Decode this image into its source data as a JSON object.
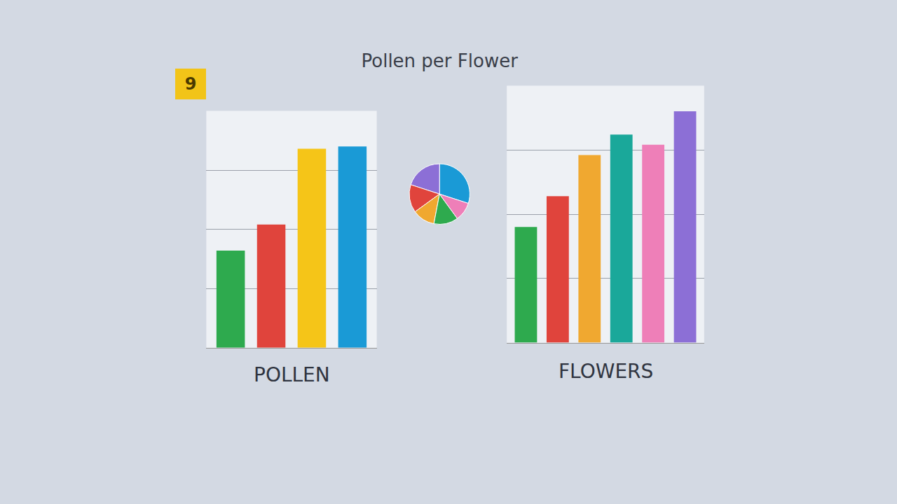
{
  "title": "Pollen per Flower",
  "badge": "9",
  "chart_data": [
    {
      "type": "bar",
      "xlabel": "POLLEN",
      "categories": [
        null,
        null,
        null,
        null
      ],
      "values": [
        41,
        52,
        84,
        85
      ],
      "colors": [
        "#2eaa4e",
        "#e0443c",
        "#f5c518",
        "#1a9ad6"
      ],
      "ylim": [
        0,
        100
      ],
      "yticks": [
        0,
        25,
        50,
        75,
        100
      ],
      "grid": true,
      "tick_labels": false
    },
    {
      "type": "pie",
      "values": [
        30,
        20,
        15,
        12,
        13,
        10
      ],
      "colors": [
        "#1a9ad6",
        "#8c6fd6",
        "#e0443c",
        "#f0a830",
        "#2eaa4e",
        "#ee7fb8"
      ]
    },
    {
      "type": "bar",
      "xlabel": "FLOWERS",
      "categories": [
        null,
        null,
        null,
        null,
        null,
        null
      ],
      "values": [
        45,
        57,
        73,
        81,
        77,
        90
      ],
      "colors": [
        "#2eaa4e",
        "#e0443c",
        "#f0a830",
        "#1aa89a",
        "#ee7fb8",
        "#8c6fd6"
      ],
      "ylim": [
        0,
        100
      ],
      "yticks": [
        0,
        25,
        50,
        75,
        100
      ],
      "grid": true,
      "tick_labels": false
    }
  ]
}
